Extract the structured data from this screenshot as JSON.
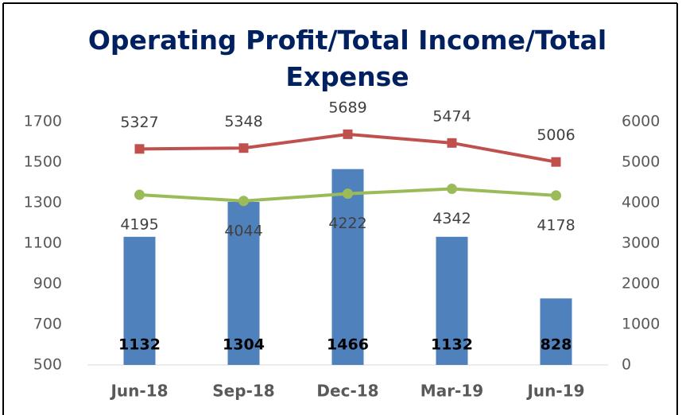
{
  "chart_data": {
    "type": "combo",
    "title": "Operating Profit/Total Income/Total Expense",
    "categories": [
      "Jun-18",
      "Sep-18",
      "Dec-18",
      "Mar-19",
      "Jun-19"
    ],
    "series": [
      {
        "type": "bar",
        "color": "#4f81bd",
        "label_position": "inside_base",
        "values": [
          1132,
          1304,
          1466,
          1132,
          828
        ]
      },
      {
        "type": "line",
        "axis": "y2",
        "color": "#c0504d",
        "marker": "square",
        "label_position": "above",
        "values": [
          5327,
          5348,
          5689,
          5474,
          5006
        ]
      },
      {
        "type": "line",
        "axis": "y2",
        "color": "#9bbb59",
        "marker": "circle",
        "label_position": "below",
        "values": [
          4195,
          4044,
          4222,
          4342,
          4178
        ]
      }
    ],
    "ylim": [
      500,
      1700
    ],
    "yticks": [
      500,
      700,
      900,
      1100,
      1300,
      1500,
      1700
    ],
    "y2lim": [
      0,
      6000
    ],
    "y2ticks": [
      0,
      1000,
      2000,
      3000,
      4000,
      5000,
      6000
    ]
  }
}
